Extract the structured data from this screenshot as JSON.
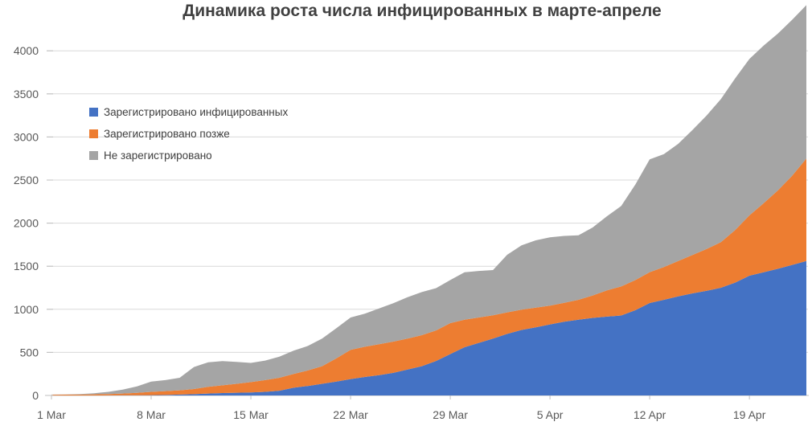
{
  "colors": {
    "series_blue": "#4472C4",
    "series_orange": "#ED7D31",
    "series_gray": "#A5A5A5",
    "gridline": "#D9D9D9",
    "axis": "#BFBFBF",
    "title_text": "#404040",
    "axis_text": "#595959",
    "legend_text": "#404040",
    "background": "#FFFFFF"
  },
  "chart_data": {
    "type": "area",
    "stacked": true,
    "title": "Динамика роста числа инфицированных в марте-апреле",
    "xlabel": "",
    "ylabel": "",
    "grid": true,
    "legend_position": "top-left-inside",
    "ylim": [
      0,
      4600
    ],
    "y_ticks": [
      0,
      500,
      1000,
      1500,
      2000,
      2500,
      3000,
      3500,
      4000
    ],
    "x_tick_labels": [
      "1 Mar",
      "8 Mar",
      "15 Mar",
      "22 Mar",
      "29 Mar",
      "5 Apr",
      "12 Apr",
      "19 Apr"
    ],
    "x_tick_days": [
      0,
      7,
      14,
      21,
      28,
      35,
      42,
      49
    ],
    "x_unit": "day",
    "n_days": 54,
    "series": [
      {
        "name": "Зарегистрировано инфицированных",
        "color": "#4472C4",
        "values": [
          0,
          0,
          0,
          0,
          1,
          2,
          3,
          4,
          6,
          10,
          15,
          22,
          28,
          32,
          35,
          42,
          55,
          90,
          110,
          135,
          160,
          190,
          215,
          235,
          262,
          300,
          340,
          400,
          480,
          560,
          610,
          660,
          715,
          760,
          790,
          825,
          855,
          880,
          900,
          915,
          928,
          990,
          1073,
          1110,
          1150,
          1185,
          1215,
          1250,
          1310,
          1390,
          1430,
          1470,
          1515,
          1560
        ]
      },
      {
        "name": "Зарегистрировано позже",
        "color": "#ED7D31",
        "values": [
          8,
          9,
          10,
          13,
          16,
          20,
          27,
          38,
          44,
          50,
          60,
          78,
          90,
          103,
          120,
          136,
          150,
          160,
          180,
          205,
          270,
          340,
          350,
          360,
          363,
          360,
          360,
          355,
          360,
          320,
          295,
          270,
          250,
          235,
          230,
          217,
          220,
          230,
          260,
          305,
          337,
          350,
          358,
          380,
          410,
          445,
          485,
          530,
          610,
          700,
          800,
          910,
          1035,
          1190
        ]
      },
      {
        "name": "Не зарегистрировано",
        "color": "#A5A5A5",
        "values": [
          2,
          3,
          6,
          13,
          25,
          46,
          75,
          118,
          128,
          145,
          255,
          285,
          280,
          255,
          223,
          227,
          245,
          270,
          285,
          320,
          350,
          375,
          385,
          415,
          445,
          480,
          500,
          490,
          500,
          550,
          540,
          525,
          668,
          747,
          780,
          793,
          777,
          748,
          790,
          860,
          935,
          1110,
          1309,
          1310,
          1360,
          1450,
          1550,
          1660,
          1760,
          1815,
          1830,
          1820,
          1810,
          1780
        ]
      }
    ]
  }
}
